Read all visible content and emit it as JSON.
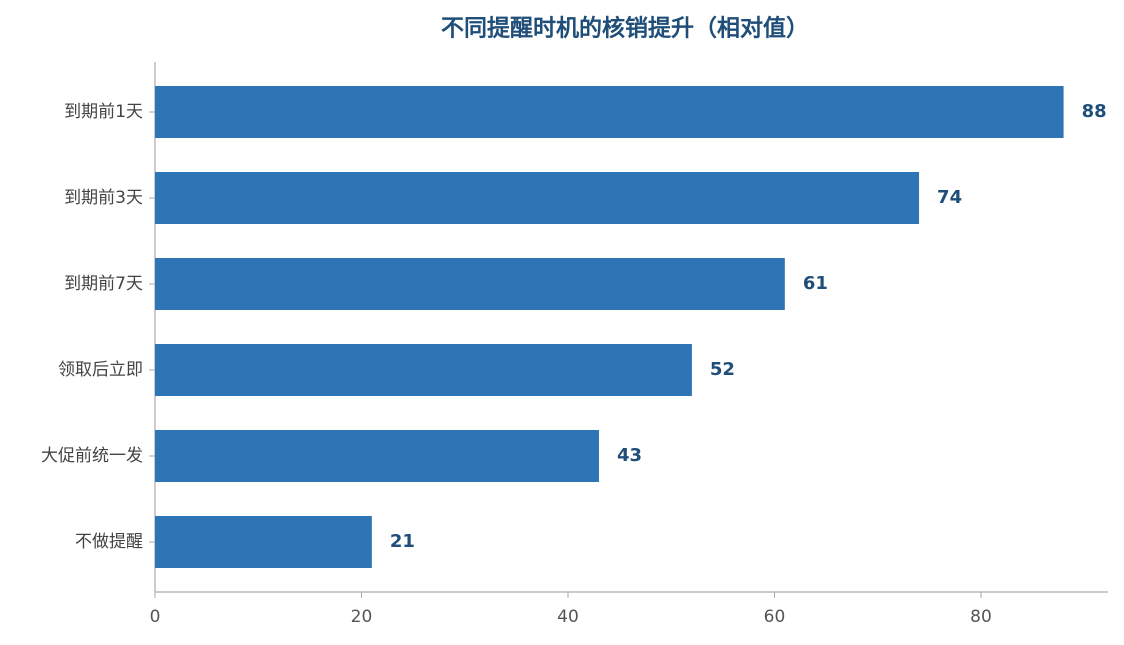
{
  "chart_data": {
    "type": "barh",
    "title": "不同提醒时机的核销提升（相对值）",
    "categories": [
      "到期前1天",
      "到期前3天",
      "到期前7天",
      "领取后立即",
      "大促前统一发",
      "不做提醒"
    ],
    "values": [
      88,
      74,
      61,
      52,
      43,
      21
    ],
    "color": "#2e75b6",
    "xlim": [
      0,
      92.3
    ],
    "xticks": [
      0,
      20,
      40,
      60,
      80
    ],
    "grid": false
  }
}
